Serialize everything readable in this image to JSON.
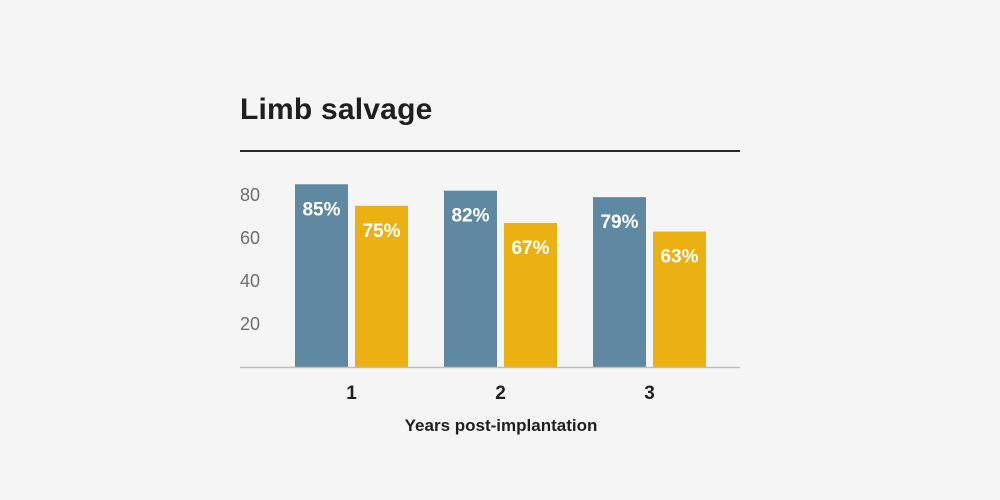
{
  "chart_data": {
    "type": "bar",
    "title": "Limb salvage",
    "xlabel": "Years post-implantation",
    "ylabel": "",
    "categories": [
      "1",
      "2",
      "3"
    ],
    "ylim": [
      0,
      87
    ],
    "yticks": [
      20,
      40,
      60,
      80
    ],
    "series": [
      {
        "color": "#5f88a3",
        "values": [
          85,
          82,
          79
        ],
        "labels": [
          "85%",
          "82%",
          "79%"
        ]
      },
      {
        "color": "#ebb012",
        "values": [
          75,
          67,
          63
        ],
        "labels": [
          "75%",
          "67%",
          "63%"
        ]
      }
    ],
    "grid": false,
    "legend": "none"
  }
}
